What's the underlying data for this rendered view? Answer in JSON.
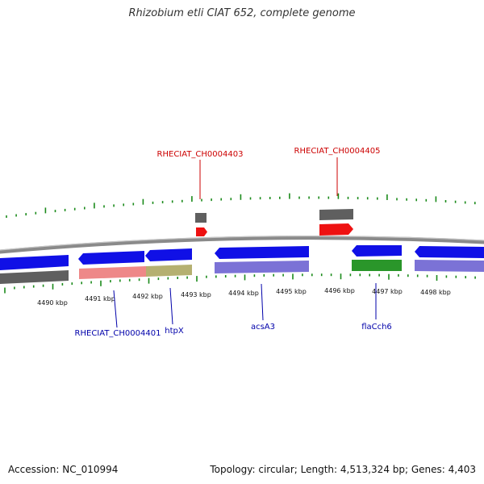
{
  "title": "Rhizobium etli CIAT 652, complete genome",
  "footer": {
    "accession": "Accession: NC_010994",
    "summary": "Topology: circular; Length: 4,513,324 bp; Genes: 4,403"
  },
  "colors": {
    "backbone": "#8a8a8a",
    "cds": "#1010e6",
    "cds_light": "#7b72d6",
    "gene_gray": "#5f5f5f",
    "rna_red": "#ee1111",
    "pseudo_pink": "#ee8888",
    "olive": "#b5b071",
    "green": "#2a962a",
    "ticks": "#1a8a1a",
    "label_red": "#cc0000",
    "label_blue": "#0000aa"
  },
  "scale_labels": [
    "4490 kbp",
    "4491 kbp",
    "4492 kbp",
    "4493 kbp",
    "4494 kbp",
    "4495 kbp",
    "4496 kbp",
    "4497 kbp",
    "4498 kbp"
  ],
  "labels_top": [
    {
      "text": "RHECIAT_CH0004403"
    },
    {
      "text": "RHECIAT_CH0004405"
    }
  ],
  "labels_bottom": [
    {
      "text": "RHECIAT_CH0004401"
    },
    {
      "text": "htpX"
    },
    {
      "text": "acsA3"
    },
    {
      "text": "flaCch6"
    }
  ]
}
